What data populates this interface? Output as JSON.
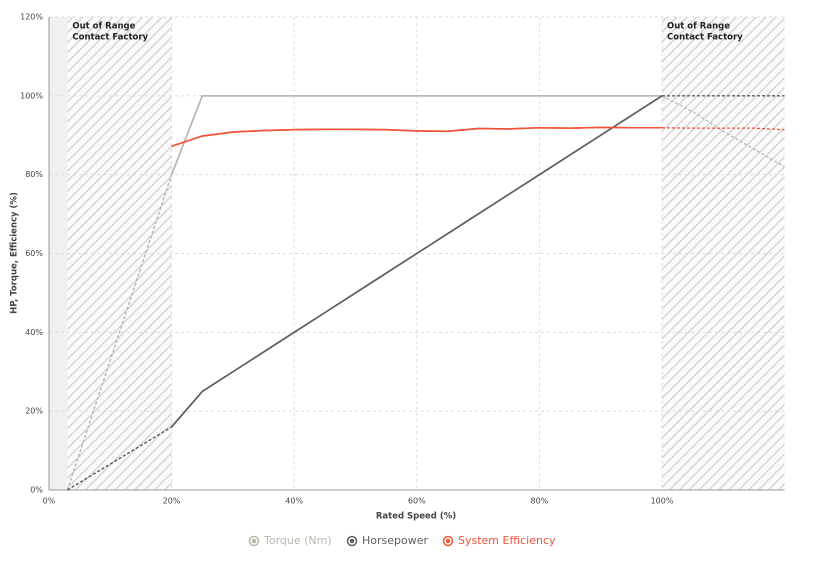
{
  "chart_data": {
    "type": "line",
    "x_label": "Rated Speed (%)",
    "y_label": "HP, Torque, Efficiency (%)",
    "x": [
      3,
      20,
      25,
      30,
      35,
      40,
      45,
      50,
      55,
      60,
      65,
      70,
      75,
      80,
      85,
      90,
      95,
      100,
      105,
      110,
      115,
      120
    ],
    "series": [
      {
        "name": "Torque (Nm)",
        "color": "#bbb6ae",
        "values": [
          0,
          80,
          100,
          100,
          100,
          100,
          100,
          100,
          100,
          100,
          100,
          100,
          100,
          100,
          100,
          100,
          100,
          100,
          96,
          91,
          86.5,
          82
        ]
      },
      {
        "name": "Horsepower",
        "color": "#5e625f",
        "values": [
          0,
          16,
          25,
          30,
          35,
          40,
          45,
          50,
          55,
          60,
          65,
          70,
          75,
          80,
          85,
          90,
          95,
          100,
          100,
          100,
          100,
          100
        ]
      },
      {
        "name": "System Efficiency",
        "color": "#f0543c",
        "values": [
          null,
          87.2,
          89.8,
          90.8,
          91.2,
          91.4,
          91.5,
          91.5,
          91.4,
          91.1,
          91.0,
          91.7,
          91.6,
          91.9,
          91.8,
          92.0,
          91.9,
          91.9,
          91.8,
          91.8,
          91.8,
          91.4
        ]
      }
    ],
    "xlim": [
      0,
      120
    ],
    "ylim": [
      0,
      120
    ],
    "xticks": [
      {
        "value": 0,
        "label": "0%"
      },
      {
        "value": 20,
        "label": "20%"
      },
      {
        "value": 40,
        "label": "40%"
      },
      {
        "value": 60,
        "label": "60%"
      },
      {
        "value": 80,
        "label": "80%"
      },
      {
        "value": 100,
        "label": "100%"
      }
    ],
    "yticks": [
      {
        "value": 0,
        "label": "0%"
      },
      {
        "value": 20,
        "label": "20%"
      },
      {
        "value": 40,
        "label": "40%"
      },
      {
        "value": 60,
        "label": "60%"
      },
      {
        "value": 80,
        "label": "80%"
      },
      {
        "value": 100,
        "label": "100%"
      },
      {
        "value": 120,
        "label": "120%"
      }
    ],
    "grid": true,
    "shaded_ranges": [
      {
        "from": 3,
        "to": 20,
        "label": [
          "Out of Range",
          "Contact Factory"
        ]
      },
      {
        "from": 100,
        "to": 120,
        "label": [
          "Out of Range",
          "Contact Factory"
        ]
      }
    ],
    "legend": "bottom"
  }
}
